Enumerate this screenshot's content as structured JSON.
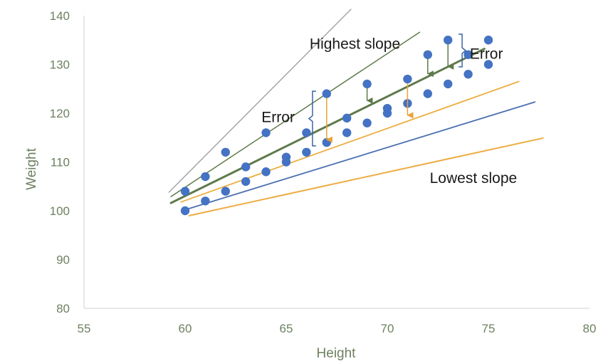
{
  "chart_data": {
    "type": "scatter",
    "title": "",
    "xlabel": "Height",
    "ylabel": "Weight",
    "xlim": [
      55,
      80
    ],
    "ylim": [
      80,
      140
    ],
    "xticks": [
      55,
      60,
      65,
      70,
      75,
      80
    ],
    "yticks": [
      80,
      90,
      100,
      110,
      120,
      130,
      140
    ],
    "grid": false,
    "legend": "none",
    "points": [
      {
        "x": 60,
        "y": 100
      },
      {
        "x": 60,
        "y": 104
      },
      {
        "x": 61,
        "y": 102
      },
      {
        "x": 61,
        "y": 107
      },
      {
        "x": 62,
        "y": 104
      },
      {
        "x": 62,
        "y": 112
      },
      {
        "x": 63,
        "y": 106
      },
      {
        "x": 63,
        "y": 109
      },
      {
        "x": 64,
        "y": 108
      },
      {
        "x": 64,
        "y": 116
      },
      {
        "x": 65,
        "y": 110
      },
      {
        "x": 65,
        "y": 111
      },
      {
        "x": 66,
        "y": 112
      },
      {
        "x": 66,
        "y": 116
      },
      {
        "x": 67,
        "y": 114
      },
      {
        "x": 67,
        "y": 124
      },
      {
        "x": 68,
        "y": 116
      },
      {
        "x": 68,
        "y": 119
      },
      {
        "x": 69,
        "y": 118
      },
      {
        "x": 69,
        "y": 126
      },
      {
        "x": 70,
        "y": 120
      },
      {
        "x": 70,
        "y": 121
      },
      {
        "x": 71,
        "y": 122
      },
      {
        "x": 71,
        "y": 127
      },
      {
        "x": 72,
        "y": 124
      },
      {
        "x": 72,
        "y": 132
      },
      {
        "x": 73,
        "y": 126
      },
      {
        "x": 73,
        "y": 135
      },
      {
        "x": 74,
        "y": 128
      },
      {
        "x": 74,
        "y": 132
      },
      {
        "x": 75,
        "y": 130
      },
      {
        "x": 75,
        "y": 135
      }
    ],
    "lines": [
      {
        "label": "Highest slope",
        "color": "#a6a6a6",
        "width": 1.5,
        "x": [
          59.2,
          68.2
        ],
        "y": [
          103.8,
          141.3
        ]
      },
      {
        "color": "#5e7a4a",
        "width": 1.5,
        "x": [
          59.3,
          71.6
        ],
        "y": [
          102.9,
          136.6
        ]
      },
      {
        "color": "#5e7a4a",
        "width": 3,
        "x": [
          59.3,
          74.8
        ],
        "y": [
          101.6,
          133.2
        ]
      },
      {
        "color": "#ecad42",
        "width": 1.8,
        "x": [
          59.8,
          76.5
        ],
        "y": [
          101.8,
          126.5
        ]
      },
      {
        "color": "#4a6fb1",
        "width": 1.8,
        "x": [
          60,
          77.3
        ],
        "y": [
          100.2,
          122.3
        ]
      },
      {
        "label": "Lowest slope",
        "color": "#ecad42",
        "width": 2,
        "x": [
          60.2,
          77.7
        ],
        "y": [
          99.0,
          114.9
        ]
      }
    ],
    "error_arrows": [
      {
        "x": 67,
        "from": 124,
        "to": 114,
        "color": "#e8a33a"
      },
      {
        "x": 69,
        "from": 126,
        "to": 122,
        "color": "#5e7a4a"
      },
      {
        "x": 71,
        "from": 127,
        "to": 119,
        "color": "#e8a33a"
      },
      {
        "x": 72,
        "from": 132,
        "to": 127.5,
        "color": "#5e7a4a"
      },
      {
        "x": 73,
        "from": 135,
        "to": 129,
        "color": "#5e7a4a"
      }
    ],
    "brackets": [
      {
        "x": 66.3,
        "from": 124.5,
        "to": 113.3,
        "color": "#3d64a8"
      },
      {
        "x": 73.7,
        "from": 136.2,
        "to": 129.5,
        "color": "#3d64a8"
      }
    ],
    "annotations": [
      {
        "text": "Highest slope",
        "x": 68.4,
        "y": 133.2,
        "anchor": "middle"
      },
      {
        "text": "Error",
        "x": 64.6,
        "y": 118.2,
        "anchor": "middle"
      },
      {
        "text": "Error",
        "x": 74.9,
        "y": 131.2,
        "anchor": "middle"
      },
      {
        "text": "Lowest slope",
        "x": 72.1,
        "y": 105.7,
        "anchor": "start"
      }
    ],
    "colors": {
      "points": "#4472c4",
      "axis_text": "#6d8160",
      "axis_line": "#d9d9d9"
    }
  }
}
